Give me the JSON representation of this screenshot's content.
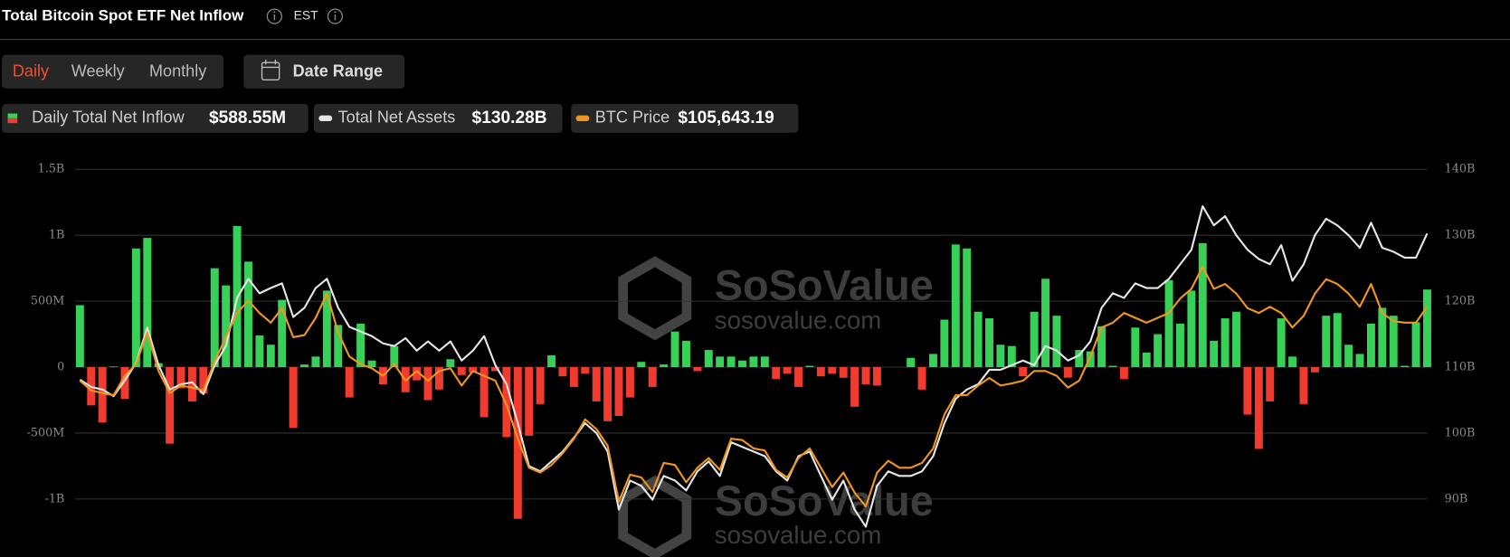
{
  "header": {
    "title": "Total Bitcoin Spot ETF Net Inflow",
    "timezone": "EST"
  },
  "tabs": [
    "Daily",
    "Weekly",
    "Monthly"
  ],
  "active_tab": 0,
  "date_range_button": "Date Range",
  "watermark": {
    "brand": "SoSoValue",
    "url": "sosovalue.com"
  },
  "chart_data": {
    "type": "bar",
    "ylim": [
      -1250000000,
      1500000000
    ],
    "yticks": [
      {
        "value": -1000000000,
        "label": "-1B"
      },
      {
        "value": -500000000,
        "label": "-500M"
      },
      0,
      {
        "value": 500000000,
        "label": "500M"
      },
      {
        "value": 1000000000,
        "label": "1B"
      },
      {
        "value": 1500000000,
        "label": "1.5B"
      }
    ],
    "y2lim": [
      85000000000,
      140000000000
    ],
    "y2ticks": [
      {
        "value": 90000000000,
        "label": "90B"
      },
      {
        "value": 100000000000,
        "label": "100B"
      },
      {
        "value": 110000000000,
        "label": "110B"
      },
      {
        "value": 120000000000,
        "label": "120B"
      },
      {
        "value": 130000000000,
        "label": "130B"
      },
      {
        "value": 140000000000,
        "label": "140B"
      }
    ],
    "y3lim": [
      73000,
      125500
    ],
    "grid": true,
    "series": [
      {
        "name": "Daily Total Net Inflow",
        "type": "bar",
        "color": "#36d156",
        "negative_color": "#f23b2f",
        "latest": {
          "value": 588550000,
          "label": "$588.55M"
        },
        "values": [
          470000000,
          -290000000,
          -420000000,
          5000000,
          -240000000,
          900000000,
          980000000,
          30000000,
          -580000000,
          -160000000,
          -260000000,
          -200000000,
          750000000,
          620000000,
          1070000000,
          800000000,
          240000000,
          170000000,
          510000000,
          -460000000,
          20000000,
          80000000,
          580000000,
          320000000,
          -230000000,
          330000000,
          50000000,
          -130000000,
          160000000,
          -190000000,
          -100000000,
          -250000000,
          -170000000,
          60000000,
          -60000000,
          -40000000,
          -380000000,
          -30000000,
          -530000000,
          -1150000000,
          -520000000,
          -280000000,
          90000000,
          -70000000,
          -150000000,
          -50000000,
          -260000000,
          -410000000,
          -370000000,
          -230000000,
          40000000,
          -150000000,
          20000000,
          270000000,
          200000000,
          -30000000,
          130000000,
          80000000,
          80000000,
          50000000,
          80000000,
          80000000,
          -90000000,
          -50000000,
          -150000000,
          10000000,
          -70000000,
          -50000000,
          -80000000,
          -300000000,
          -130000000,
          -140000000,
          0,
          0,
          70000000,
          -170000000,
          100000000,
          360000000,
          930000000,
          900000000,
          420000000,
          370000000,
          170000000,
          160000000,
          -70000000,
          420000000,
          670000000,
          390000000,
          -80000000,
          130000000,
          120000000,
          310000000,
          10000000,
          -90000000,
          300000000,
          110000000,
          250000000,
          660000000,
          330000000,
          580000000,
          940000000,
          200000000,
          370000000,
          420000000,
          -360000000,
          -620000000,
          -260000000,
          370000000,
          80000000,
          -280000000,
          -40000000,
          390000000,
          410000000,
          170000000,
          100000000,
          330000000,
          450000000,
          390000000,
          10000000,
          340000000,
          588550000
        ]
      },
      {
        "name": "Total Net Assets",
        "type": "line",
        "axis": "y2",
        "color": "#e6e6e6",
        "latest": {
          "value": 130280000000,
          "label": "$130.28B"
        },
        "values": [
          108100000000,
          107000000000,
          106600000000,
          105600000000,
          108000000000,
          110600000000,
          116000000000,
          110300000000,
          106600000000,
          107400000000,
          107700000000,
          105900000000,
          110300000000,
          113200000000,
          120500000000,
          123400000000,
          121200000000,
          122000000000,
          122700000000,
          117600000000,
          119000000000,
          122000000000,
          123400000000,
          119000000000,
          116100000000,
          115400000000,
          114700000000,
          113600000000,
          113200000000,
          114400000000,
          112500000000,
          113900000000,
          112500000000,
          113900000000,
          111000000000,
          112500000000,
          114700000000,
          110300000000,
          107400000000,
          101500000000,
          95000000000,
          94200000000,
          95700000000,
          97200000000,
          99300000000,
          101500000000,
          100000000000,
          97200000000,
          88400000000,
          92800000000,
          92000000000,
          89900000000,
          93500000000,
          92800000000,
          91300000000,
          94200000000,
          95700000000,
          93500000000,
          98600000000,
          97900000000,
          97200000000,
          96500000000,
          94200000000,
          92800000000,
          96500000000,
          97200000000,
          93500000000,
          89900000000,
          92800000000,
          88400000000,
          85800000000,
          92000000000,
          94200000000,
          93500000000,
          93500000000,
          94200000000,
          96500000000,
          101500000000,
          105200000000,
          106600000000,
          107400000000,
          109600000000,
          109600000000,
          110300000000,
          111000000000,
          110300000000,
          113200000000,
          112500000000,
          111000000000,
          111800000000,
          113900000000,
          119000000000,
          121200000000,
          120500000000,
          122700000000,
          122000000000,
          122000000000,
          123400000000,
          125600000000,
          127800000000,
          134400000000,
          131500000000,
          132900000000,
          130000000000,
          127800000000,
          126400000000,
          125600000000,
          128500000000,
          123100000000,
          125600000000,
          130000000000,
          132500000000,
          131500000000,
          130000000000,
          128100000000,
          131900000000,
          128100000000,
          127500000000,
          126600000000,
          126600000000,
          130280000000
        ]
      },
      {
        "name": "BTC Price",
        "type": "line",
        "axis": "y3",
        "color": "#f0961e",
        "latest": {
          "value": 105643.19,
          "label": "$105,643.19"
        },
        "values": [
          94900,
          93500,
          93100,
          92800,
          95600,
          97300,
          101900,
          96300,
          93100,
          94200,
          93900,
          93500,
          97700,
          101200,
          104700,
          106500,
          104700,
          103300,
          105400,
          101200,
          101500,
          104000,
          107500,
          101900,
          98400,
          97300,
          96700,
          95600,
          97300,
          94900,
          96300,
          94900,
          96300,
          96700,
          94200,
          96300,
          95600,
          94900,
          91400,
          86500,
          82300,
          81600,
          82700,
          84400,
          86500,
          89300,
          87900,
          85500,
          77400,
          81300,
          80900,
          78800,
          83000,
          82700,
          80200,
          82300,
          83700,
          82000,
          86500,
          86300,
          85100,
          84800,
          82000,
          80900,
          83700,
          85100,
          82300,
          79500,
          81600,
          78700,
          76700,
          81600,
          83300,
          82300,
          82300,
          83000,
          85100,
          90000,
          92800,
          92800,
          94200,
          95300,
          94200,
          94500,
          94900,
          96300,
          96300,
          95600,
          93900,
          94900,
          98400,
          102600,
          103300,
          104700,
          104000,
          103300,
          104000,
          104700,
          106800,
          108200,
          111400,
          108200,
          108900,
          107500,
          105400,
          104700,
          105600,
          104700,
          102600,
          104300,
          107500,
          109600,
          108900,
          107500,
          105600,
          108900,
          104700,
          103500,
          103300,
          103300,
          105643.19
        ]
      }
    ]
  }
}
